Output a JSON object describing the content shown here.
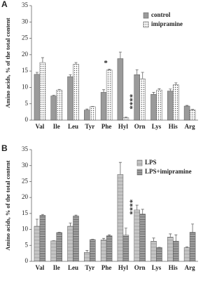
{
  "chart_data": [
    {
      "type": "bar",
      "panel": "A",
      "y_label": "Amino acids, % of the total content",
      "categories": [
        "Val",
        "Ile",
        "Leu",
        "Tyr",
        "Phe",
        "Hyl",
        "Orn",
        "Lys",
        "His",
        "Arg"
      ],
      "series": [
        {
          "name": "control",
          "color": "#9a9a9a",
          "pattern": "solid",
          "values": [
            14,
            7.4,
            13.3,
            3.1,
            8.5,
            18.8,
            13.9,
            7.9,
            8.9,
            4.3
          ],
          "errors": [
            0.6,
            0.2,
            0.6,
            0.3,
            0.8,
            2,
            1.5,
            0.6,
            0.6,
            0.2
          ]
        },
        {
          "name": "imipramine",
          "color": "#777777",
          "pattern": "dots",
          "values": [
            17.6,
            9.2,
            17.1,
            4.1,
            15.3,
            0.7,
            12.6,
            9.2,
            10.8,
            3.1
          ],
          "errors": [
            1.5,
            0.2,
            0.5,
            0.1,
            0.3,
            0.2,
            2,
            0.4,
            0.6,
            0.2
          ]
        }
      ],
      "annotations": [
        "*",
        "****"
      ],
      "ylim": [
        0,
        35
      ],
      "yticks": [
        0,
        5,
        10,
        15,
        20,
        25,
        30,
        35
      ]
    },
    {
      "type": "bar",
      "panel": "B",
      "y_label": "Amino acids, % of the total content",
      "categories": [
        "Val",
        "Ile",
        "Leu",
        "Tyr",
        "Phe",
        "Hyl",
        "Orn",
        "Lys",
        "His",
        "Arg"
      ],
      "series": [
        {
          "name": "LPS",
          "color": "#888888",
          "pattern": "hlines",
          "values": [
            11,
            6.4,
            11,
            2.8,
            6.7,
            27.2,
            16.1,
            6.3,
            7.6,
            4.3
          ],
          "errors": [
            2.2,
            0.1,
            1,
            0.6,
            0.5,
            3.8,
            1.5,
            1,
            1,
            0.2
          ]
        },
        {
          "name": "LPS+imipramine",
          "color": "#666666",
          "pattern": "hlines-dense",
          "values": [
            14.4,
            9,
            14.2,
            6.8,
            8,
            8.2,
            14.8,
            4.3,
            6.3,
            9.1
          ],
          "errors": [
            0.3,
            0.1,
            0.3,
            0.1,
            0.3,
            2.2,
            1.5,
            0.1,
            2,
            2.6
          ]
        }
      ],
      "annotations": [
        "****"
      ],
      "ylim": [
        0,
        35
      ],
      "yticks": [
        0,
        5,
        10,
        15,
        20,
        25,
        30,
        35
      ]
    }
  ]
}
